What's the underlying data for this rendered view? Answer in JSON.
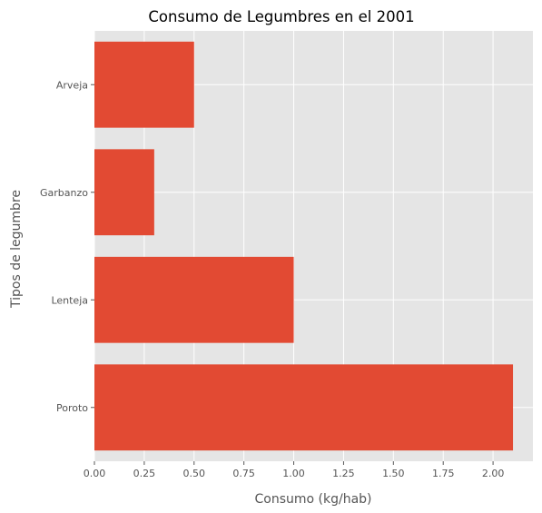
{
  "chart_data": {
    "type": "bar",
    "orientation": "horizontal",
    "title": "Consumo de Legumbres en el 2001",
    "xlabel": "Consumo (kg/hab)",
    "ylabel": "Tipos de legumbre",
    "categories": [
      "Poroto",
      "Lenteja",
      "Garbanzo",
      "Arveja"
    ],
    "values": [
      2.1,
      1.0,
      0.3,
      0.5
    ],
    "xlim": [
      0,
      2.2
    ],
    "xticks": [
      0.0,
      0.25,
      0.5,
      0.75,
      1.0,
      1.25,
      1.5,
      1.75,
      2.0
    ],
    "xtick_labels": [
      "0.00",
      "0.25",
      "0.50",
      "0.75",
      "1.00",
      "1.25",
      "1.50",
      "1.75",
      "2.00"
    ],
    "grid": true,
    "colors": {
      "bar": "#E24A33",
      "background": "#E5E5E5",
      "grid": "#FFFFFF"
    }
  }
}
